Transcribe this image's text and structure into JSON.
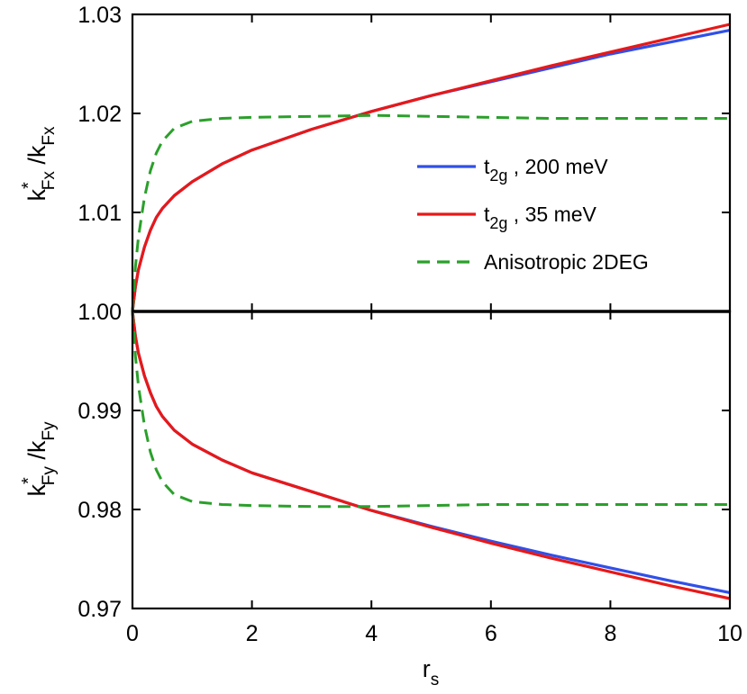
{
  "chart_data": {
    "type": "line",
    "x_label": "r",
    "x_label_sub": "s",
    "xlim": [
      0,
      10
    ],
    "x_ticks": [
      "0",
      "2",
      "4",
      "6",
      "8",
      "10"
    ],
    "panels": [
      {
        "id": "top",
        "ylabel": {
          "k": "k",
          "sup": "*",
          "sub1": "Fx",
          "sep": " /k",
          "sub2": "Fx"
        },
        "ylim": [
          1.0,
          1.03
        ],
        "y_ticks": [
          "1.00",
          "1.01",
          "1.02",
          "1.03"
        ],
        "series": [
          {
            "key": "t2g_200",
            "color": "#3050e8",
            "dash": false,
            "x": [
              0,
              0.05,
              0.1,
              0.2,
              0.3,
              0.4,
              0.5,
              0.7,
              1.0,
              1.5,
              2,
              3,
              4,
              5,
              6,
              7,
              8,
              9,
              10
            ],
            "y": [
              1.0,
              1.0025,
              1.0042,
              1.0065,
              1.0082,
              1.0095,
              1.0104,
              1.0117,
              1.0131,
              1.0149,
              1.0163,
              1.0184,
              1.0202,
              1.0218,
              1.0232,
              1.0246,
              1.026,
              1.0272,
              1.0284
            ]
          },
          {
            "key": "t2g_35",
            "color": "#e81818",
            "dash": false,
            "x": [
              0,
              0.05,
              0.1,
              0.2,
              0.3,
              0.4,
              0.5,
              0.7,
              1.0,
              1.5,
              2,
              3,
              4,
              5,
              6,
              7,
              8,
              9,
              10
            ],
            "y": [
              1.0,
              1.0025,
              1.0042,
              1.0065,
              1.0082,
              1.0095,
              1.0104,
              1.0117,
              1.0131,
              1.0149,
              1.0163,
              1.0184,
              1.0202,
              1.0218,
              1.0233,
              1.0248,
              1.0262,
              1.0276,
              1.029
            ]
          },
          {
            "key": "aniso",
            "color": "#2aa02a",
            "dash": true,
            "x": [
              0,
              0.05,
              0.1,
              0.2,
              0.3,
              0.4,
              0.5,
              0.7,
              1.0,
              1.5,
              2,
              3,
              4,
              5,
              6,
              7,
              8,
              9,
              10
            ],
            "y": [
              1.0,
              1.0045,
              1.0075,
              1.0115,
              1.0142,
              1.016,
              1.0172,
              1.0185,
              1.0192,
              1.0195,
              1.0196,
              1.0197,
              1.0198,
              1.0197,
              1.0196,
              1.0195,
              1.0195,
              1.0195,
              1.0195
            ]
          }
        ]
      },
      {
        "id": "bottom",
        "ylabel": {
          "k": "k",
          "sup": "*",
          "sub1": "Fy",
          "sep": " /k",
          "sub2": "Fy"
        },
        "ylim": [
          0.97,
          1.0
        ],
        "y_ticks": [
          "0.97",
          "0.98",
          "0.99",
          "1.00"
        ],
        "series": [
          {
            "key": "t2g_200",
            "color": "#3050e8",
            "dash": false,
            "x": [
              0,
              0.05,
              0.1,
              0.2,
              0.3,
              0.4,
              0.5,
              0.7,
              1.0,
              1.5,
              2,
              3,
              4,
              5,
              6,
              7,
              8,
              9,
              10
            ],
            "y": [
              1.0,
              0.9975,
              0.9958,
              0.9935,
              0.9918,
              0.9904,
              0.9894,
              0.988,
              0.9866,
              0.985,
              0.9837,
              0.9818,
              0.9799,
              0.9783,
              0.9768,
              0.9754,
              0.9741,
              0.9728,
              0.9716
            ]
          },
          {
            "key": "t2g_35",
            "color": "#e81818",
            "dash": false,
            "x": [
              0,
              0.05,
              0.1,
              0.2,
              0.3,
              0.4,
              0.5,
              0.7,
              1.0,
              1.5,
              2,
              3,
              4,
              5,
              6,
              7,
              8,
              9,
              10
            ],
            "y": [
              1.0,
              0.9975,
              0.9958,
              0.9935,
              0.9918,
              0.9904,
              0.9894,
              0.988,
              0.9866,
              0.985,
              0.9837,
              0.9818,
              0.9799,
              0.9782,
              0.9766,
              0.9751,
              0.9737,
              0.9723,
              0.971
            ]
          },
          {
            "key": "aniso",
            "color": "#2aa02a",
            "dash": true,
            "x": [
              0,
              0.05,
              0.1,
              0.2,
              0.3,
              0.4,
              0.5,
              0.7,
              1.0,
              1.5,
              2,
              3,
              4,
              5,
              6,
              7,
              8,
              9,
              10
            ],
            "y": [
              1.0,
              0.9955,
              0.9925,
              0.9885,
              0.9858,
              0.984,
              0.9828,
              0.9815,
              0.9808,
              0.9805,
              0.9804,
              0.9803,
              0.9803,
              0.9804,
              0.9805,
              0.9805,
              0.9805,
              0.9805,
              0.9805
            ]
          }
        ]
      }
    ],
    "legend": {
      "position": "top-panel right",
      "entries": [
        {
          "key": "t2g_200",
          "text_main": "t",
          "text_sub": "2g",
          "text_rest": " , 200 meV",
          "color": "#3050e8",
          "dash": false
        },
        {
          "key": "t2g_35",
          "text_main": "t",
          "text_sub": "2g",
          "text_rest": " , 35 meV",
          "color": "#e81818",
          "dash": false
        },
        {
          "key": "aniso",
          "text_main": "Anisotropic 2DEG",
          "text_sub": "",
          "text_rest": "",
          "color": "#2aa02a",
          "dash": true
        }
      ]
    }
  }
}
